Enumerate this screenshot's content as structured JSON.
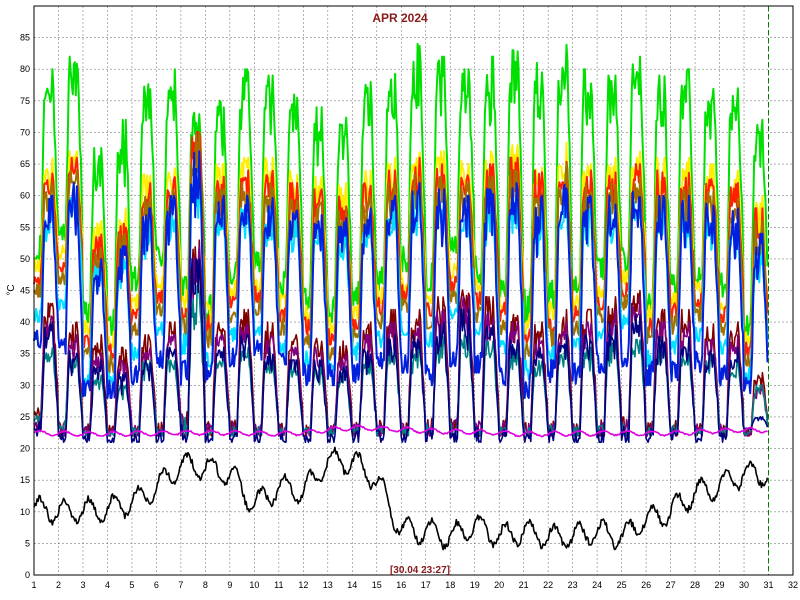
{
  "chart_data": {
    "type": "line",
    "title": "APR 2024",
    "ylabel": "°C",
    "xlabel": "",
    "timestamp": "[30.04 23:27]",
    "xlim": [
      1,
      32
    ],
    "ylim": [
      0,
      90
    ],
    "x_ticks": [
      "1",
      "2",
      "3",
      "4",
      "5",
      "6",
      "7",
      "8",
      "9",
      "10",
      "11",
      "12",
      "13",
      "14",
      "15",
      "16",
      "17",
      "18",
      "19",
      "20",
      "21",
      "22",
      "23",
      "24",
      "25",
      "26",
      "27",
      "28",
      "29",
      "30",
      "31",
      "32"
    ],
    "y_ticks": [
      "0",
      "5",
      "10",
      "15",
      "20",
      "25",
      "30",
      "35",
      "40",
      "45",
      "50",
      "55",
      "60",
      "65",
      "70",
      "75",
      "80",
      "85"
    ],
    "grid": true,
    "current_time_marker": 31.0,
    "series": [
      {
        "color": "#00e000",
        "daily_min": [
          50,
          52,
          40,
          38,
          45,
          48,
          44,
          40,
          46,
          48,
          44,
          42,
          40,
          42,
          45,
          48,
          45,
          50,
          46,
          44,
          40,
          42,
          44,
          46,
          48,
          42,
          44,
          46,
          44,
          38
        ],
        "daily_max": [
          80,
          82,
          68,
          72,
          78,
          80,
          74,
          75,
          80,
          79,
          76,
          74,
          73,
          78,
          80,
          84,
          82,
          80,
          82,
          83,
          81,
          85,
          80,
          79,
          82,
          79,
          80,
          78,
          77,
          72
        ]
      },
      {
        "color": "#ffee00",
        "daily_min": [
          48,
          50,
          38,
          36,
          42,
          45,
          42,
          40,
          44,
          45,
          42,
          40,
          38,
          40,
          43,
          45,
          43,
          47,
          44,
          42,
          38,
          40,
          42,
          44,
          46,
          40,
          42,
          44,
          42,
          36
        ],
        "daily_max": [
          66,
          67,
          56,
          58,
          64,
          65,
          70,
          65,
          66,
          66,
          64,
          63,
          62,
          64,
          66,
          68,
          67,
          66,
          67,
          68,
          66,
          69,
          66,
          66,
          67,
          66,
          66,
          65,
          64,
          60
        ]
      },
      {
        "color": "#ff2000",
        "daily_min": [
          46,
          48,
          36,
          34,
          40,
          43,
          40,
          38,
          42,
          43,
          40,
          38,
          36,
          38,
          41,
          43,
          41,
          45,
          42,
          40,
          36,
          38,
          40,
          42,
          44,
          38,
          40,
          42,
          40,
          34
        ],
        "daily_max": [
          64,
          66,
          54,
          56,
          62,
          63,
          72,
          63,
          64,
          64,
          62,
          61,
          60,
          62,
          64,
          66,
          65,
          64,
          65,
          66,
          64,
          67,
          64,
          64,
          65,
          64,
          64,
          63,
          62,
          58
        ]
      },
      {
        "color": "#a07000",
        "daily_min": [
          44,
          46,
          34,
          32,
          38,
          41,
          38,
          36,
          40,
          41,
          38,
          36,
          34,
          36,
          39,
          41,
          39,
          43,
          40,
          38,
          34,
          36,
          38,
          40,
          42,
          36,
          38,
          40,
          38,
          32
        ],
        "daily_max": [
          62,
          64,
          52,
          54,
          60,
          61,
          70,
          61,
          62,
          62,
          60,
          59,
          58,
          60,
          62,
          64,
          63,
          62,
          63,
          64,
          62,
          65,
          62,
          62,
          63,
          62,
          62,
          61,
          60,
          56
        ]
      },
      {
        "color": "#00e0ff",
        "daily_min": [
          40,
          42,
          30,
          30,
          34,
          38,
          35,
          33,
          37,
          38,
          35,
          33,
          32,
          34,
          36,
          38,
          36,
          40,
          37,
          35,
          31,
          33,
          35,
          37,
          39,
          33,
          35,
          37,
          35,
          30
        ],
        "daily_max": [
          58,
          60,
          50,
          50,
          56,
          57,
          64,
          57,
          58,
          58,
          56,
          55,
          54,
          56,
          58,
          60,
          59,
          58,
          59,
          60,
          58,
          61,
          58,
          58,
          59,
          58,
          58,
          57,
          56,
          52
        ]
      },
      {
        "color": "#0020e0",
        "daily_min": [
          36,
          34,
          28,
          28,
          30,
          32,
          30,
          30,
          33,
          34,
          32,
          30,
          30,
          30,
          32,
          32,
          30,
          33,
          32,
          30,
          28,
          30,
          30,
          32,
          33,
          30,
          30,
          32,
          30,
          28
        ],
        "daily_max": [
          60,
          62,
          50,
          52,
          58,
          60,
          67,
          60,
          60,
          60,
          59,
          58,
          57,
          58,
          60,
          62,
          61,
          60,
          61,
          62,
          60,
          63,
          60,
          60,
          61,
          60,
          60,
          59,
          58,
          54
        ]
      },
      {
        "color": "#800000",
        "daily_min": [
          24,
          22,
          22,
          22,
          22,
          22,
          22,
          22,
          22,
          22,
          22,
          22,
          22,
          22,
          22,
          22,
          22,
          22,
          22,
          22,
          22,
          22,
          22,
          22,
          22,
          22,
          22,
          22,
          22,
          22
        ],
        "daily_max": [
          44,
          40,
          38,
          36,
          38,
          40,
          54,
          40,
          42,
          40,
          38,
          38,
          37,
          40,
          42,
          42,
          44,
          46,
          44,
          42,
          40,
          42,
          42,
          44,
          46,
          42,
          42,
          40,
          40,
          32
        ]
      },
      {
        "color": "#800080",
        "daily_min": [
          23,
          22,
          22,
          22,
          22,
          22,
          22,
          22,
          22,
          22,
          22,
          22,
          22,
          22,
          22,
          22,
          22,
          22,
          22,
          22,
          22,
          22,
          22,
          22,
          22,
          22,
          22,
          22,
          22,
          22
        ],
        "daily_max": [
          42,
          38,
          36,
          34,
          36,
          38,
          52,
          38,
          40,
          38,
          36,
          36,
          35,
          38,
          40,
          40,
          42,
          44,
          42,
          40,
          38,
          40,
          40,
          42,
          44,
          40,
          40,
          38,
          38,
          30
        ]
      },
      {
        "color": "#008080",
        "daily_min": [
          24,
          23,
          22,
          22,
          22,
          22,
          22,
          22,
          22,
          22,
          22,
          22,
          22,
          22,
          22,
          22,
          22,
          22,
          22,
          22,
          22,
          22,
          22,
          22,
          22,
          22,
          22,
          22,
          22,
          22
        ],
        "daily_max": [
          36,
          35,
          32,
          30,
          34,
          34,
          46,
          34,
          36,
          34,
          33,
          33,
          32,
          34,
          36,
          36,
          38,
          38,
          37,
          36,
          34,
          36,
          36,
          38,
          38,
          36,
          36,
          35,
          34,
          30
        ]
      },
      {
        "color": "#000080",
        "daily_min": [
          22,
          21,
          21,
          21,
          21,
          21,
          21,
          21,
          21,
          21,
          21,
          21,
          21,
          21,
          21,
          21,
          21,
          21,
          21,
          21,
          21,
          21,
          21,
          21,
          21,
          21,
          21,
          21,
          21,
          23
        ],
        "daily_max": [
          40,
          36,
          34,
          32,
          34,
          36,
          50,
          36,
          38,
          36,
          34,
          34,
          33,
          36,
          38,
          38,
          40,
          42,
          40,
          38,
          36,
          38,
          38,
          40,
          42,
          38,
          38,
          36,
          36,
          25
        ]
      },
      {
        "color": "#e000e0",
        "daily_avg": [
          22.5,
          22.4,
          22.3,
          22.3,
          22.4,
          22.4,
          22.5,
          22.5,
          22.5,
          22.4,
          22.4,
          22.5,
          23.0,
          23.3,
          23.2,
          23.0,
          22.8,
          22.7,
          22.6,
          22.5,
          22.3,
          22.3,
          22.4,
          22.4,
          22.5,
          22.4,
          22.4,
          22.6,
          22.8,
          22.9
        ]
      },
      {
        "color": "#000000",
        "daily_avg": [
          10.5,
          10,
          10.2,
          10.5,
          11.5,
          14,
          17.5,
          17,
          16,
          11,
          14,
          13,
          18,
          18,
          15,
          7,
          7,
          6,
          8,
          6,
          7,
          6,
          6,
          7,
          6,
          9,
          10,
          13,
          14,
          16
        ]
      }
    ]
  }
}
